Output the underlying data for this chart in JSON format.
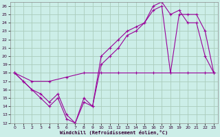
{
  "xlabel": "Windchill (Refroidissement éolien,°C)",
  "bg_color": "#cceee8",
  "grid_color": "#aaccbb",
  "line_color": "#990099",
  "xlim": [
    -0.5,
    23.5
  ],
  "ylim": [
    12,
    26.5
  ],
  "xticks": [
    0,
    1,
    2,
    3,
    4,
    5,
    6,
    7,
    8,
    9,
    10,
    11,
    12,
    13,
    14,
    15,
    16,
    17,
    18,
    19,
    20,
    21,
    22,
    23
  ],
  "yticks": [
    12,
    13,
    14,
    15,
    16,
    17,
    18,
    19,
    20,
    21,
    22,
    23,
    24,
    25,
    26
  ],
  "line1_x": [
    0,
    1,
    2,
    3,
    4,
    5,
    6,
    7,
    8,
    9,
    10,
    11,
    12,
    13,
    14,
    15,
    16,
    17,
    18,
    19,
    20,
    21,
    22,
    23
  ],
  "line1_y": [
    18,
    17,
    16,
    15,
    14,
    15,
    12.5,
    12,
    15,
    14,
    20,
    21,
    22,
    23,
    23.5,
    24,
    25.5,
    26,
    18,
    25,
    25,
    25,
    23,
    18
  ],
  "line2_x": [
    0,
    1,
    2,
    3,
    4,
    5,
    6,
    7,
    8,
    9,
    10,
    11,
    12,
    13,
    14,
    15,
    16,
    17,
    18,
    19,
    20,
    21,
    22,
    23
  ],
  "line2_y": [
    18,
    17,
    16,
    15.5,
    14.5,
    15.5,
    13,
    12,
    14.5,
    14,
    19,
    20,
    21,
    22.5,
    23,
    24,
    26,
    26.5,
    25,
    25.5,
    24,
    24,
    20,
    18
  ],
  "line3_x": [
    0,
    2,
    4,
    6,
    8,
    10,
    12,
    14,
    16,
    18,
    20,
    22,
    23
  ],
  "line3_y": [
    18,
    17,
    17,
    17.5,
    18,
    18,
    18,
    18,
    18,
    18,
    18,
    18,
    18
  ]
}
